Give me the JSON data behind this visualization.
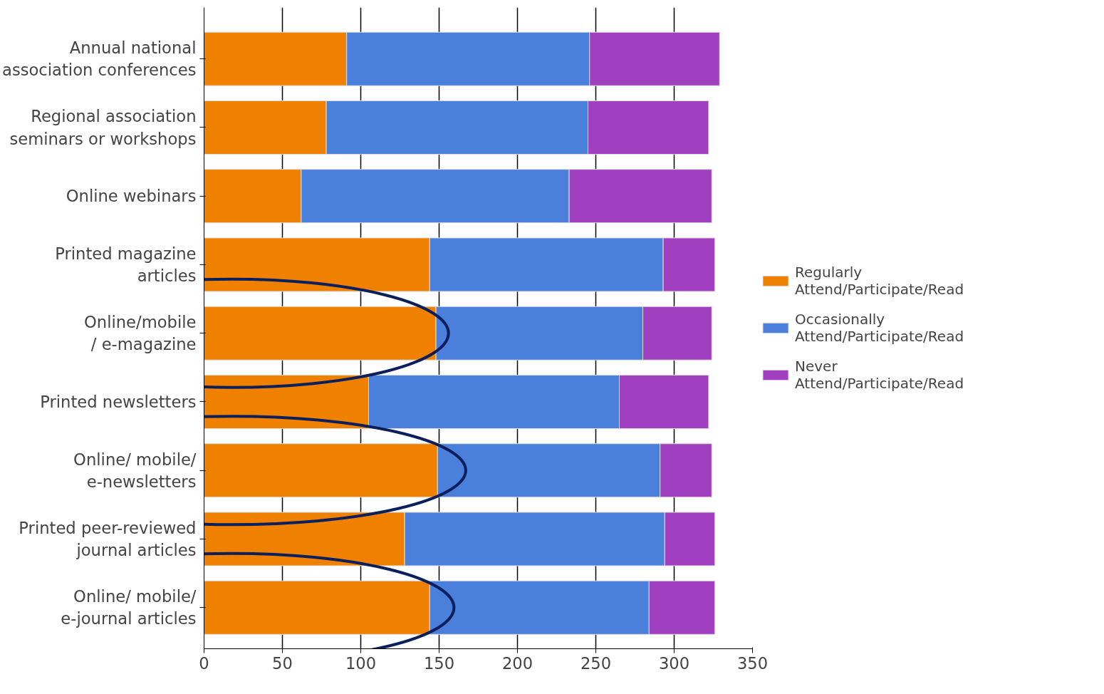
{
  "chart_data": {
    "type": "bar",
    "orientation": "horizontal",
    "stacked": true,
    "categories": [
      "Annual national\nassociation conferences",
      "Regional association\nseminars or workshops",
      "Online webinars",
      "Printed magazine\narticles",
      "Online/mobile\n/ e-magazine",
      "Printed newsletters",
      "Online/ mobile/\ne-newsletters",
      "Printed peer-reviewed\njournal articles",
      "Online/ mobile/\ne-journal articles"
    ],
    "series": [
      {
        "name": "Regularly\nAttend/Participate/Read",
        "color": "#f08000",
        "values": [
          91,
          78,
          62,
          144,
          148,
          105,
          149,
          128,
          144
        ]
      },
      {
        "name": "Occasionally\nAttend/Participate/Read",
        "color": "#4a7fdc",
        "values": [
          155,
          167,
          171,
          149,
          132,
          160,
          142,
          166,
          140
        ]
      },
      {
        "name": "Never\nAttend/Participate/Read",
        "color": "#a040c0",
        "values": [
          83,
          77,
          91,
          33,
          44,
          57,
          33,
          32,
          42
        ]
      }
    ],
    "xlim": [
      0,
      350
    ],
    "xticks": [
      0,
      50,
      100,
      150,
      200,
      250,
      300,
      350
    ],
    "grid": "x",
    "legend": "right"
  }
}
